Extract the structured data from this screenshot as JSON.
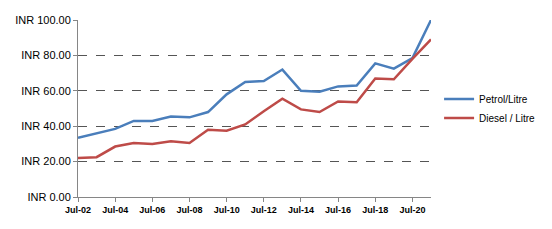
{
  "chart_data": {
    "type": "line",
    "categories": [
      "Jul-02",
      null,
      "Jul-04",
      null,
      "Jul-06",
      null,
      "Jul-08",
      null,
      "Jul-10",
      null,
      "Jul-12",
      null,
      "Jul-14",
      null,
      "Jul-16",
      null,
      "Jul-18",
      null,
      "Jul-20",
      null
    ],
    "series": [
      {
        "name": "Petrol/Litre",
        "color": "#4a7ebb",
        "values": [
          33.5,
          36,
          38.5,
          43,
          43,
          45.5,
          45,
          48,
          58,
          65,
          65.5,
          72,
          60,
          59.5,
          62.5,
          63,
          75.5,
          72.5,
          78.5,
          100
        ]
      },
      {
        "name": "Diesel / Litre",
        "color": "#be4b48",
        "values": [
          22,
          22.5,
          28.5,
          30.5,
          30,
          31.5,
          30.5,
          38,
          37.5,
          41,
          48.5,
          55.5,
          49.5,
          48,
          54,
          53.5,
          67,
          66.5,
          78,
          89
        ]
      }
    ],
    "ylim": [
      0,
      100
    ],
    "yticks": [
      {
        "value": 0,
        "label": "INR 0.00"
      },
      {
        "value": 20,
        "label": "INR 20.00"
      },
      {
        "value": 40,
        "label": "INR 40.00"
      },
      {
        "value": 60,
        "label": "INR 60.00"
      },
      {
        "value": 80,
        "label": "INR 80.00"
      },
      {
        "value": 100,
        "label": "INR 100.00"
      }
    ],
    "grid": true,
    "legend": "right"
  }
}
